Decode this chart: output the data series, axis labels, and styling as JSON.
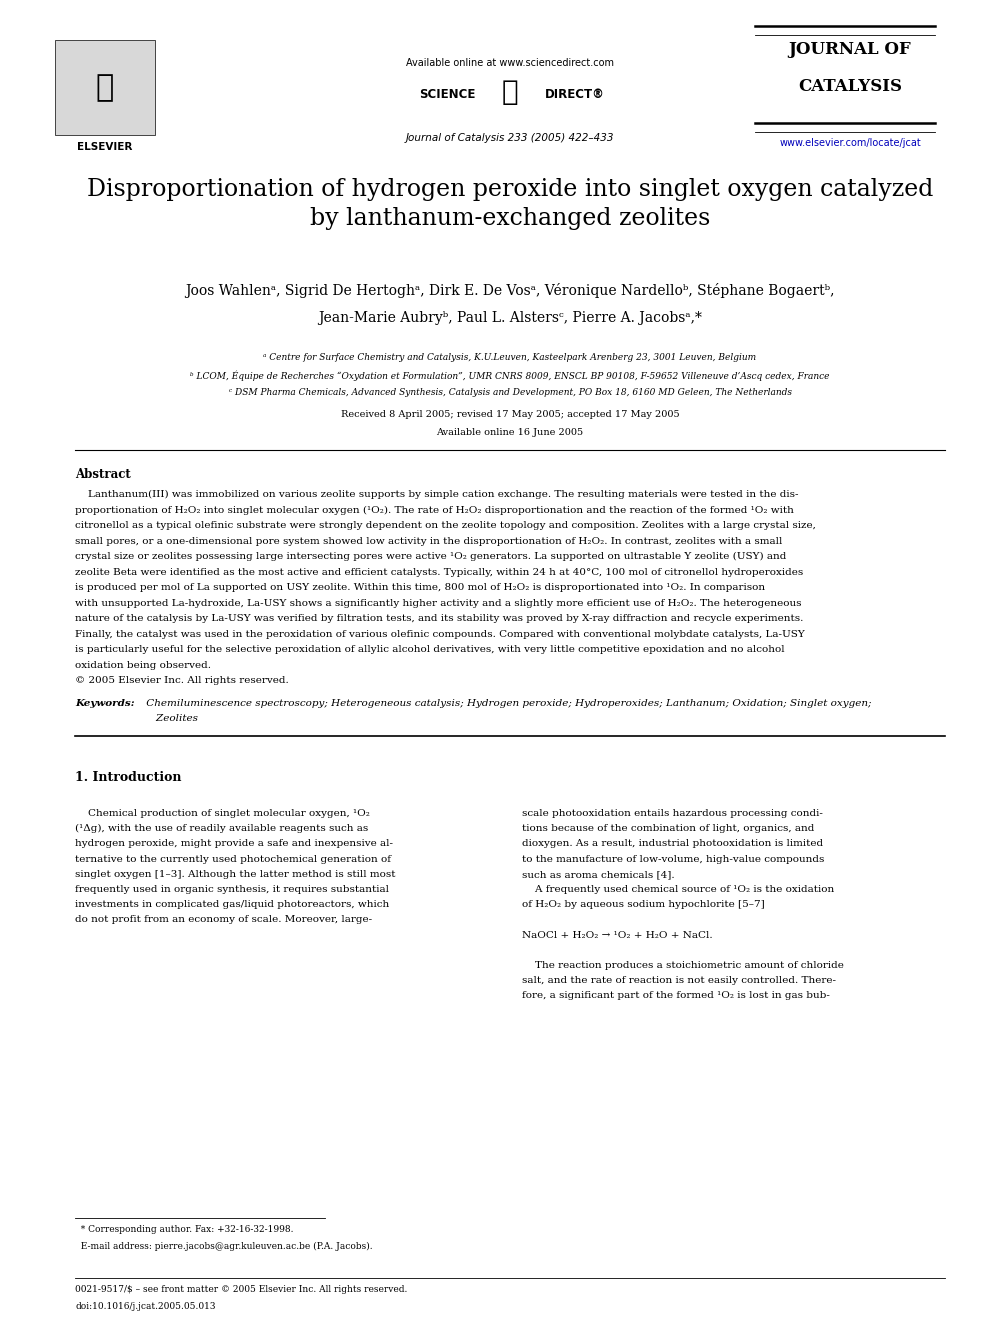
{
  "bg_color": "#ffffff",
  "page_width": 9.92,
  "page_height": 13.23,
  "header": {
    "available_online": "Available online at www.sciencedirect.com",
    "journal_name_line1": "JOURNAL OF",
    "journal_name_line2": "CATALYSIS",
    "journal_ref": "Journal of Catalysis 233 (2005) 422–433",
    "website": "www.elsevier.com/locate/jcat"
  },
  "title": "Disproportionation of hydrogen peroxide into singlet oxygen catalyzed\nby lanthanum-exchanged zeolites",
  "authors_line1": "Joos Wahlenᵃ, Sigrid De Hertoghᵃ, Dirk E. De Vosᵃ, Véronique Nardelloᵇ, Stéphane Bogaertᵇ,",
  "authors_line2": "Jean-Marie Aubryᵇ, Paul L. Alstersᶜ, Pierre A. Jacobsᵃ,*",
  "affil_a": "ᵃ Centre for Surface Chemistry and Catalysis, K.U.Leuven, Kasteelpark Arenberg 23, 3001 Leuven, Belgium",
  "affil_b": "ᵇ LCOM, Équipe de Recherches “Oxydation et Formulation”, UMR CNRS 8009, ENSCL BP 90108, F-59652 Villeneuve d’Ascq cedex, France",
  "affil_c": "ᶜ DSM Pharma Chemicals, Advanced Synthesis, Catalysis and Development, PO Box 18, 6160 MD Geleen, The Netherlands",
  "received": "Received 8 April 2005; revised 17 May 2005; accepted 17 May 2005",
  "available": "Available online 16 June 2005",
  "abstract_title": "Abstract",
  "abstract_lines": [
    "    Lanthanum(III) was immobilized on various zeolite supports by simple cation exchange. The resulting materials were tested in the dis-",
    "proportionation of H₂O₂ into singlet molecular oxygen (¹O₂). The rate of H₂O₂ disproportionation and the reaction of the formed ¹O₂ with",
    "citronellol as a typical olefinic substrate were strongly dependent on the zeolite topology and composition. Zeolites with a large crystal size,",
    "small pores, or a one-dimensional pore system showed low activity in the disproportionation of H₂O₂. In contrast, zeolites with a small",
    "crystal size or zeolites possessing large intersecting pores were active ¹O₂ generators. La supported on ultrastable Y zeolite (USY) and",
    "zeolite Beta were identified as the most active and efficient catalysts. Typically, within 24 h at 40°C, 100 mol of citronellol hydroperoxides",
    "is produced per mol of La supported on USY zeolite. Within this time, 800 mol of H₂O₂ is disproportionated into ¹O₂. In comparison",
    "with unsupported La-hydroxide, La-USY shows a significantly higher activity and a slightly more efficient use of H₂O₂. The heterogeneous",
    "nature of the catalysis by La-USY was verified by filtration tests, and its stability was proved by X-ray diffraction and recycle experiments.",
    "Finally, the catalyst was used in the peroxidation of various olefinic compounds. Compared with conventional molybdate catalysts, La-USY",
    "is particularly useful for the selective peroxidation of allylic alcohol derivatives, with very little competitive epoxidation and no alcohol",
    "oxidation being observed.",
    "© 2005 Elsevier Inc. All rights reserved."
  ],
  "keywords_label": "Keywords:",
  "keywords_line1": " Chemiluminescence spectroscopy; Heterogeneous catalysis; Hydrogen peroxide; Hydroperoxides; Lanthanum; Oxidation; Singlet oxygen;",
  "keywords_line2": "    Zeolites",
  "section1_title": "1. Introduction",
  "intro_col1": [
    "    Chemical production of singlet molecular oxygen, ¹O₂",
    "(¹Δɡ), with the use of readily available reagents such as",
    "hydrogen peroxide, might provide a safe and inexpensive al-",
    "ternative to the currently used photochemical generation of",
    "singlet oxygen [1–3]. Although the latter method is still most",
    "frequently used in organic synthesis, it requires substantial",
    "investments in complicated gas/liquid photoreactors, which",
    "do not profit from an economy of scale. Moreover, large-"
  ],
  "intro_col2": [
    "scale photooxidation entails hazardous processing condi-",
    "tions because of the combination of light, organics, and",
    "dioxygen. As a result, industrial photooxidation is limited",
    "to the manufacture of low-volume, high-value compounds",
    "such as aroma chemicals [4].",
    "    A frequently used chemical source of ¹O₂ is the oxidation",
    "of H₂O₂ by aqueous sodium hypochlorite [5–7]",
    "",
    "NaOCl + H₂O₂ → ¹O₂ + H₂O + NaCl.",
    "",
    "    The reaction produces a stoichiometric amount of chloride",
    "salt, and the rate of reaction is not easily controlled. There-",
    "fore, a significant part of the formed ¹O₂ is lost in gas bub-"
  ],
  "footnote_star": "  * Corresponding author. Fax: +32-16-32-1998.",
  "footnote_email": "  E-mail address: pierre.jacobs@agr.kuleuven.ac.be (P.A. Jacobs).",
  "footer_issn": "0021-9517/$ – see front matter © 2005 Elsevier Inc. All rights reserved.",
  "footer_doi": "doi:10.1016/j.jcat.2005.05.013"
}
